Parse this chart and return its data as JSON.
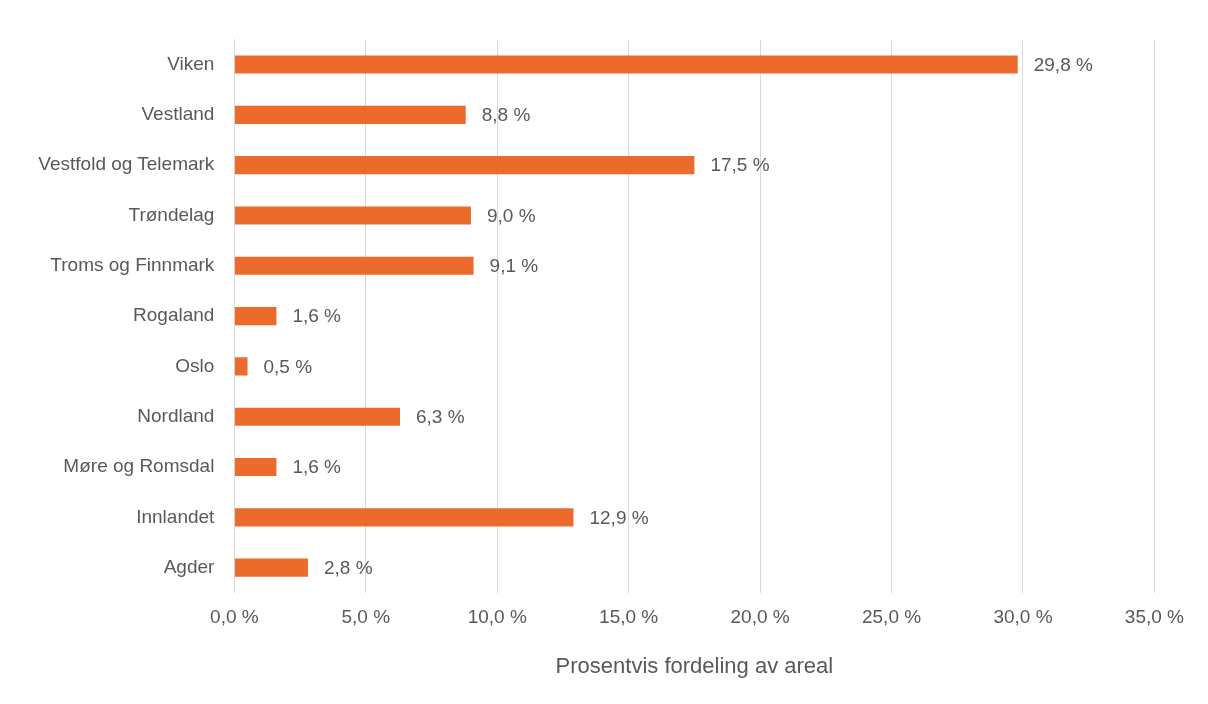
{
  "chart_data": {
    "type": "bar",
    "orientation": "horizontal",
    "xlabel": "Prosentvis fordeling av areal",
    "categories": [
      "Viken",
      "Vestland",
      "Vestfold og Telemark",
      "Trøndelag",
      "Troms og Finnmark",
      "Rogaland",
      "Oslo",
      "Nordland",
      "Møre og Romsdal",
      "Innlandet",
      "Agder"
    ],
    "values": [
      29.8,
      8.8,
      17.5,
      9.0,
      9.1,
      1.6,
      0.5,
      6.3,
      1.6,
      12.9,
      2.8
    ],
    "value_labels": [
      "29,8 %",
      "8,8 %",
      "17,5 %",
      "9,0 %",
      "9,1 %",
      "1,6 %",
      "0,5 %",
      "6,3 %",
      "1,6 %",
      "12,9 %",
      "2,8 %"
    ],
    "color": "#ec6a2b",
    "xlim": [
      0,
      35
    ],
    "xticks": [
      {
        "value": 0,
        "label": "0,0 %"
      },
      {
        "value": 5,
        "label": "5,0 %"
      },
      {
        "value": 10,
        "label": "10,0 %"
      },
      {
        "value": 15,
        "label": "15,0 %"
      },
      {
        "value": 20,
        "label": "20,0 %"
      },
      {
        "value": 25,
        "label": "25,0 %"
      },
      {
        "value": 30,
        "label": "30,0 %"
      },
      {
        "value": 35,
        "label": "35,0 %"
      }
    ],
    "grid": "x",
    "legend": false
  }
}
